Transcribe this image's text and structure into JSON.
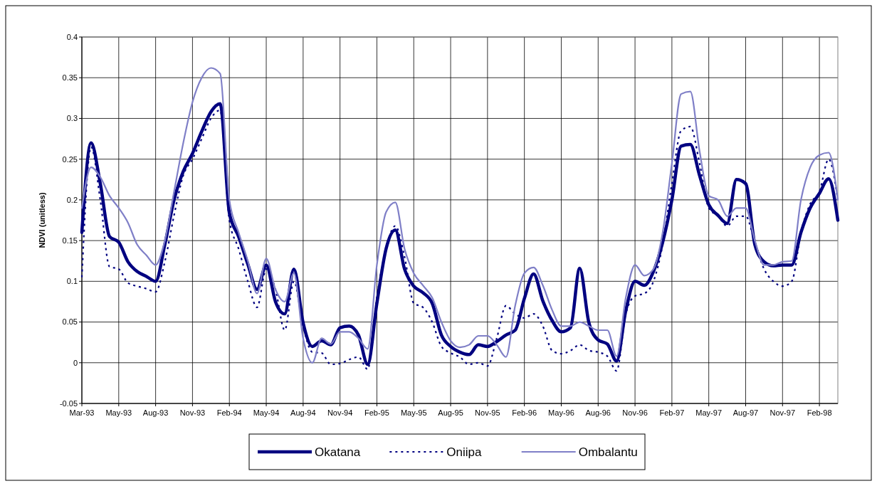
{
  "chart_data": {
    "type": "line",
    "ylabel": "NDVI (unitless)",
    "categories": [
      "Mar-93",
      null,
      null,
      null,
      "May-93",
      null,
      null,
      null,
      "Aug-93",
      null,
      null,
      null,
      "Nov-93",
      null,
      null,
      null,
      "Feb-94",
      null,
      null,
      null,
      "May-94",
      null,
      null,
      null,
      "Aug-94",
      null,
      null,
      null,
      "Nov-94",
      null,
      null,
      null,
      "Feb-95",
      null,
      null,
      null,
      "May-95",
      null,
      null,
      null,
      "Aug-95",
      null,
      null,
      null,
      "Nov-95",
      null,
      null,
      null,
      "Feb-96",
      null,
      null,
      null,
      "May-96",
      null,
      null,
      null,
      "Aug-96",
      null,
      null,
      null,
      "Nov-96",
      null,
      null,
      null,
      "Feb-97",
      null,
      null,
      null,
      "May-97",
      null,
      null,
      null,
      "Aug-97",
      null,
      null,
      null,
      "Nov-97",
      null,
      null,
      null,
      "Feb-98",
      null,
      null
    ],
    "series": [
      {
        "name": "Okatana",
        "color": "#000080",
        "line_style": "solid",
        "values": [
          0.16,
          0.27,
          0.22,
          0.155,
          0.148,
          0.124,
          0.112,
          0.106,
          0.1,
          0.145,
          0.2,
          0.235,
          0.257,
          0.284,
          0.308,
          0.318,
          0.184,
          0.155,
          0.121,
          0.09,
          0.12,
          0.075,
          0.06,
          0.115,
          0.049,
          0.02,
          0.027,
          0.022,
          0.043,
          0.045,
          0.034,
          -0.002,
          0.073,
          0.14,
          0.163,
          0.115,
          0.094,
          0.086,
          0.073,
          0.034,
          0.02,
          0.013,
          0.01,
          0.022,
          0.02,
          0.026,
          0.034,
          0.04,
          0.079,
          0.109,
          0.076,
          0.052,
          0.038,
          0.043,
          0.116,
          0.049,
          0.028,
          0.023,
          0.002,
          0.064,
          0.1,
          0.095,
          0.112,
          0.148,
          0.2,
          0.266,
          0.268,
          0.23,
          0.194,
          0.181,
          0.171,
          0.225,
          0.22,
          0.145,
          0.124,
          0.119,
          0.12,
          0.12,
          0.16,
          0.19,
          0.208,
          0.226,
          0.175
        ]
      },
      {
        "name": "Oniipa",
        "color": "#000080",
        "line_style": "dotted",
        "values": [
          0.105,
          0.265,
          0.2,
          0.118,
          0.115,
          0.098,
          0.094,
          0.091,
          0.087,
          0.124,
          0.181,
          0.23,
          0.25,
          0.275,
          0.3,
          0.31,
          0.175,
          0.14,
          0.1,
          0.068,
          0.115,
          0.09,
          0.04,
          0.1,
          0.045,
          0.013,
          0.012,
          -0.002,
          -0.001,
          0.004,
          0.007,
          -0.008,
          0.08,
          0.14,
          0.168,
          0.13,
          0.073,
          0.068,
          0.05,
          0.02,
          0.012,
          0.007,
          -0.002,
          0,
          -0.004,
          0.03,
          0.07,
          0.06,
          0.055,
          0.06,
          0.045,
          0.015,
          0.011,
          0.015,
          0.022,
          0.015,
          0.013,
          0.008,
          -0.01,
          0.06,
          0.082,
          0.085,
          0.1,
          0.145,
          0.22,
          0.285,
          0.29,
          0.245,
          0.19,
          0.18,
          0.168,
          0.18,
          0.18,
          0.148,
          0.115,
          0.1,
          0.094,
          0.1,
          0.16,
          0.195,
          0.21,
          0.25,
          0.2
        ]
      },
      {
        "name": "Ombalantu",
        "color": "#7f7fc7",
        "line_style": "solid",
        "values": [
          0.19,
          0.24,
          0.228,
          0.205,
          0.19,
          0.172,
          0.145,
          0.132,
          0.12,
          0.15,
          0.21,
          0.27,
          0.32,
          0.35,
          0.362,
          0.355,
          0.2,
          0.16,
          0.125,
          0.085,
          0.128,
          0.09,
          0.075,
          0.11,
          0.03,
          0,
          0.03,
          0.023,
          0.038,
          0.038,
          0.03,
          0.017,
          0.12,
          0.185,
          0.197,
          0.14,
          0.11,
          0.095,
          0.08,
          0.05,
          0.027,
          0.019,
          0.022,
          0.033,
          0.033,
          0.022,
          0.007,
          0.07,
          0.11,
          0.117,
          0.095,
          0.065,
          0.045,
          0.045,
          0.05,
          0.045,
          0.04,
          0.04,
          0.008,
          0.08,
          0.12,
          0.107,
          0.115,
          0.16,
          0.245,
          0.33,
          0.333,
          0.26,
          0.205,
          0.2,
          0.18,
          0.19,
          0.19,
          0.15,
          0.12,
          0.12,
          0.124,
          0.125,
          0.2,
          0.24,
          0.255,
          0.258,
          0.2
        ]
      }
    ],
    "ylim": [
      -0.05,
      0.4
    ],
    "yticks": [
      -0.05,
      0,
      0.05,
      0.1,
      0.15,
      0.2,
      0.25,
      0.3,
      0.35,
      0.4
    ],
    "grid": true,
    "legend": "bottom"
  }
}
